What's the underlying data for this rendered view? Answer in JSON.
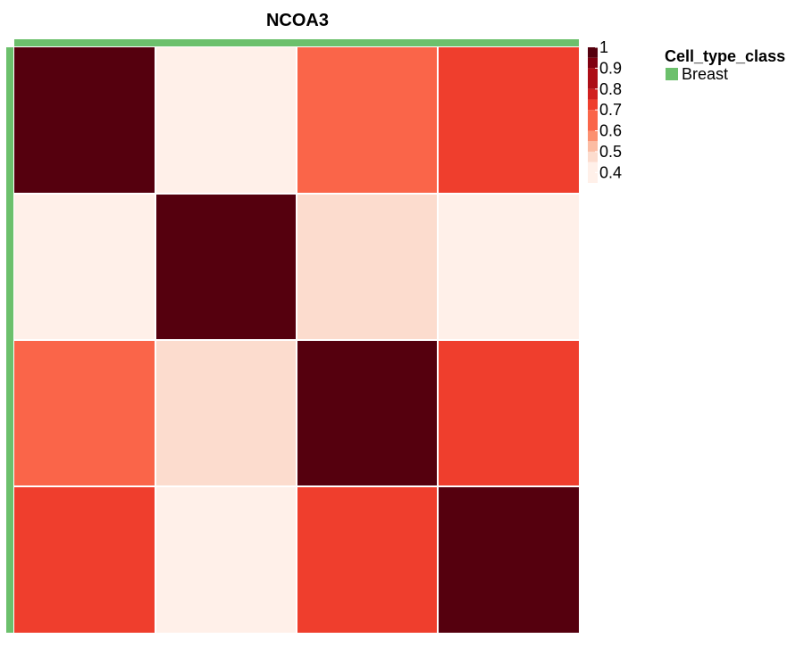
{
  "chart_data": {
    "type": "heatmap",
    "title": "NCOA3",
    "rows": 4,
    "cols": 4,
    "values": [
      [
        1.0,
        0.4,
        0.65,
        0.72
      ],
      [
        0.4,
        1.0,
        0.48,
        0.4
      ],
      [
        0.65,
        0.48,
        1.0,
        0.72
      ],
      [
        0.72,
        0.4,
        0.72,
        1.0
      ]
    ],
    "color_scale": {
      "min": 0.35,
      "max": 1.0,
      "bins": [
        {
          "from": 0.35,
          "color": "#fff0e9"
        },
        {
          "from": 0.45,
          "color": "#fcdcce"
        },
        {
          "from": 0.5,
          "color": "#fcbca3"
        },
        {
          "from": 0.55,
          "color": "#fc9070"
        },
        {
          "from": 0.6,
          "color": "#fa6549"
        },
        {
          "from": 0.7,
          "color": "#ef3e2d"
        },
        {
          "from": 0.75,
          "color": "#d11f1f"
        },
        {
          "from": 0.8,
          "color": "#ad0e17"
        },
        {
          "from": 0.9,
          "color": "#800010"
        },
        {
          "from": 0.95,
          "color": "#55000e"
        }
      ]
    },
    "colorbar_ticks": [
      "1",
      "0.9",
      "0.8",
      "0.7",
      "0.6",
      "0.5",
      "0.4"
    ],
    "annotation": {
      "name": "Cell_type_class",
      "levels": [
        {
          "label": "Breast",
          "color": "#6cc06c"
        }
      ]
    }
  }
}
